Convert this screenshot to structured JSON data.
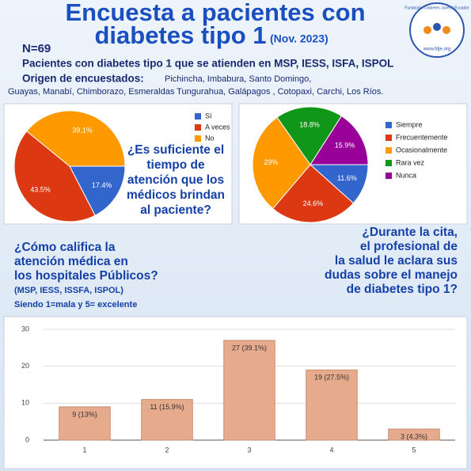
{
  "header": {
    "title_line1": "Encuesta a pacientes con",
    "title_line2": "diabetes tipo 1",
    "date": "(Nov. 2023)",
    "n": "N=69",
    "subtitle": "Pacientes con diabetes tipo 1 que se atienden en MSP, IESS, ISFA, ISPOL",
    "origin_label": "Origen de encuestados:",
    "origin_lines": [
      "Pichincha, Imbabura, Santo Domingo,",
      "Guayas, Manabí, Chimborazo, Esmeraldas Tungurahua, Galápagos , Cotopaxi, Carchi, Los Ríos."
    ],
    "logo_name": "Fundación Diabetes Juvenil Ecuador",
    "logo_url": "www.fdje.org"
  },
  "questions": {
    "time": [
      "¿Es suficiente el",
      "tiempo de",
      "atención que los",
      "médicos brindan",
      "al paciente?"
    ],
    "rating": [
      "¿Cómo califica la",
      "atención médica en",
      "los hospitales Públicos?"
    ],
    "rating_note": [
      "(MSP, IESS, ISSFA, ISPOL)",
      "Siendo 1=mala y 5= excelente"
    ],
    "doubts": [
      "¿Durante la cita,",
      "el profesional de",
      "la salud le aclara sus",
      "dudas sobre el manejo",
      "de diabetes tipo 1?"
    ]
  },
  "chart_data": [
    {
      "type": "pie",
      "categories": [
        "Sí",
        "A veces",
        "No"
      ],
      "values": [
        17.4,
        43.5,
        39.1
      ],
      "value_labels": [
        "17.4%",
        "43.5%",
        "39.1%"
      ],
      "colors": [
        "#3366cc",
        "#dc3912",
        "#ff9900"
      ]
    },
    {
      "type": "pie",
      "categories": [
        "Siempre",
        "Frecuentemente",
        "Ocasionalmente",
        "Rara vez",
        "Nunca"
      ],
      "values": [
        11.6,
        24.6,
        29,
        18.8,
        15.9
      ],
      "value_labels": [
        "11.6%",
        "24.6%",
        "29%",
        "18.8%",
        "15.9%"
      ],
      "colors": [
        "#3366cc",
        "#dc3912",
        "#ff9900",
        "#109618",
        "#990099"
      ]
    },
    {
      "type": "bar",
      "categories": [
        "1",
        "2",
        "3",
        "4",
        "5"
      ],
      "values": [
        9,
        11,
        27,
        19,
        3
      ],
      "value_labels": [
        "9 (13%)",
        "11 (15.9%)",
        "27 (39.1%)",
        "19 (27.5%)",
        "3 (4.3%)"
      ],
      "color": "#e6ab8c",
      "ylim": [
        0,
        30
      ],
      "yticks": [
        0,
        10,
        20,
        30
      ],
      "grid": true
    }
  ]
}
